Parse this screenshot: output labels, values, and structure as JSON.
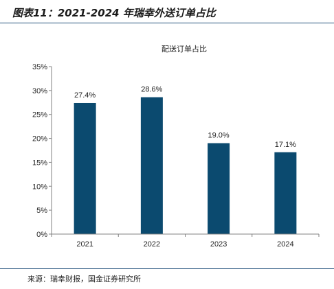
{
  "figure": {
    "title": "图表11：2021-2024 年瑞幸外送订单占比",
    "source": "来源：瑞幸财报，国金证券研究所"
  },
  "colors": {
    "bar": "#0b4a6f",
    "rule": "#1f4e79",
    "axis": "#808080"
  },
  "chart_data": {
    "type": "bar",
    "title": "配送订单占比",
    "categories": [
      "2021",
      "2022",
      "2023",
      "2024"
    ],
    "values": [
      27.4,
      28.6,
      19.0,
      17.1
    ],
    "data_labels": [
      "27.4%",
      "28.6%",
      "19.0%",
      "17.1%"
    ],
    "ylim": [
      0,
      35
    ],
    "yticks": [
      0,
      5,
      10,
      15,
      20,
      25,
      30,
      35
    ],
    "ytick_labels": [
      "0%",
      "5%",
      "10%",
      "15%",
      "20%",
      "25%",
      "30%",
      "35%"
    ],
    "xlabel": "",
    "ylabel": "",
    "grid": false,
    "legend": "none"
  }
}
